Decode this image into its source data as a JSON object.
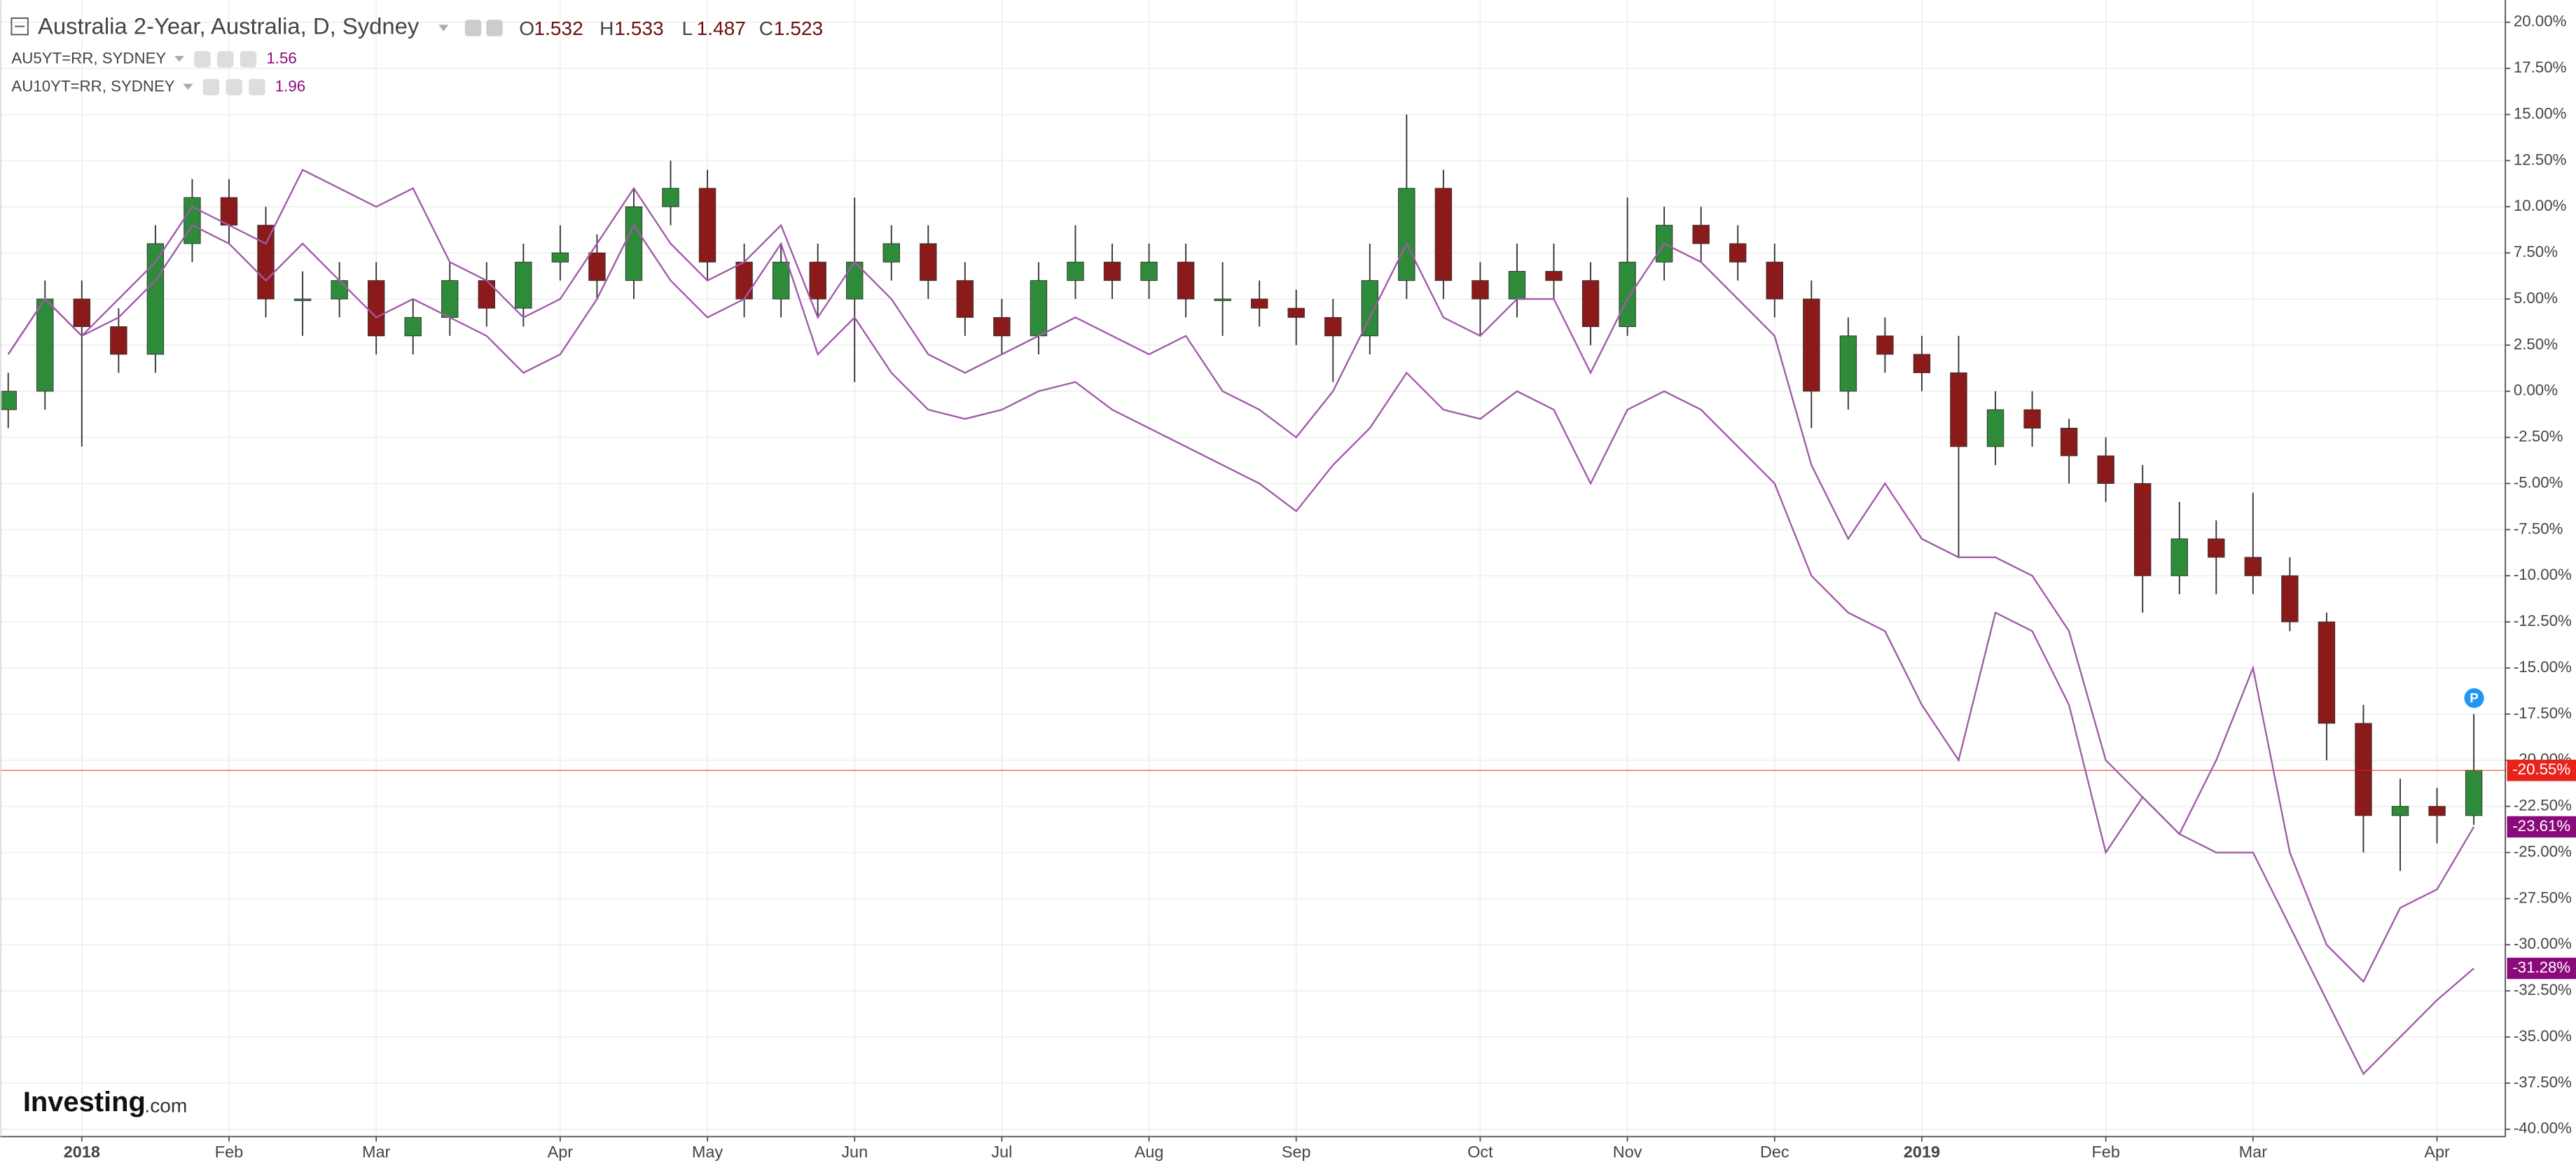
{
  "chart_data": {
    "type": "candlestick",
    "title": "Australia 2-Year, Australia, D, Sydney",
    "ohlc": [
      {
        "label": "O",
        "value": 1.532
      },
      {
        "label": "H",
        "value": 1.533
      },
      {
        "label": "L",
        "value": 1.487
      },
      {
        "label": "C",
        "value": 1.523
      }
    ],
    "categories": [
      null,
      null,
      "2018",
      null,
      null,
      null,
      "Feb",
      null,
      null,
      null,
      "Mar",
      null,
      null,
      null,
      null,
      "Apr",
      null,
      null,
      null,
      "May",
      null,
      null,
      null,
      "Jun",
      null,
      null,
      null,
      "Jul",
      null,
      null,
      null,
      "Aug",
      null,
      null,
      null,
      "Sep",
      null,
      null,
      null,
      null,
      "Oct",
      null,
      null,
      null,
      "Nov",
      null,
      null,
      null,
      "Dec",
      null,
      null,
      null,
      "2019",
      null,
      null,
      null,
      null,
      "Feb",
      null,
      null,
      null,
      "Mar",
      null,
      null,
      null,
      null,
      "Apr",
      null
    ],
    "series": [
      {
        "name": "Australia 2-Year, Australia, D, Sydney",
        "type": "candlestick",
        "up_color": "#2e8b3a",
        "down_color": "#8b1a1a",
        "label_color": "#e8231c",
        "open": [
          -1,
          0,
          5,
          3.5,
          2,
          8,
          10.5,
          9,
          5,
          5,
          6,
          3,
          4,
          6,
          4.5,
          7,
          7.5,
          6,
          10,
          11,
          7,
          5,
          7,
          5,
          7,
          8,
          6,
          4,
          3,
          6,
          7,
          6,
          7,
          5,
          5,
          4.5,
          4,
          3,
          6,
          11,
          6,
          5,
          6.5,
          6,
          3.5,
          7,
          9,
          8,
          7,
          5,
          0,
          3,
          2,
          1,
          -3,
          -1,
          -2,
          -3.5,
          -5,
          -10,
          -8,
          -9,
          -10,
          -12.5,
          -18,
          -23,
          -22.5,
          -23
        ],
        "high": [
          1,
          6,
          6,
          4.5,
          9,
          11.5,
          11.5,
          10,
          6.5,
          7,
          7,
          5,
          7,
          7,
          8,
          9,
          8.5,
          11,
          12.5,
          12,
          8,
          8,
          8,
          10.5,
          9,
          9,
          7,
          5,
          7,
          9,
          8,
          8,
          8,
          7,
          6,
          5.5,
          5,
          8,
          15,
          12,
          7,
          8,
          8,
          7,
          10.5,
          10,
          10,
          9,
          8,
          6,
          4,
          4,
          3,
          3,
          0,
          0,
          -1.5,
          -2.5,
          -4,
          -6,
          -7,
          -5.5,
          -9,
          -12,
          -17,
          -21,
          -21.5,
          -17.5
        ],
        "low": [
          -2,
          -1,
          -3,
          1,
          1,
          7,
          8,
          4,
          3,
          4,
          2,
          2,
          3,
          3.5,
          3.5,
          6,
          5,
          5,
          9,
          6,
          4,
          4,
          4,
          0.5,
          6,
          5,
          3,
          2,
          2,
          5,
          5,
          5,
          4,
          3,
          3.5,
          2.5,
          0.5,
          2,
          5,
          5,
          3,
          4,
          5,
          2.5,
          3,
          6,
          7,
          6,
          4,
          -2,
          -1,
          1,
          0,
          -9,
          -4,
          -3,
          -5,
          -6,
          -12,
          -11,
          -11,
          -11,
          -13,
          -20,
          -25,
          -26,
          -24.5,
          -23.5
        ],
        "close": [
          0,
          5,
          3.5,
          2,
          8,
          10.5,
          9,
          5,
          5,
          6,
          3,
          4,
          6,
          4.5,
          7,
          7.5,
          6,
          10,
          11,
          7,
          5,
          7,
          5,
          7,
          8,
          6,
          4,
          3,
          6,
          7,
          6,
          7,
          5,
          5,
          4.5,
          4,
          3,
          6,
          11,
          6,
          5,
          6.5,
          6,
          3.5,
          7,
          9,
          8,
          7,
          5,
          0,
          3,
          2,
          1,
          -3,
          -1,
          -2,
          -3.5,
          -5,
          -10,
          -8,
          -9,
          -10,
          -12.5,
          -18,
          -23,
          -22.5,
          -23,
          -20.55
        ],
        "value_labels": [
          null,
          null,
          null,
          null,
          null,
          null,
          null,
          null,
          null,
          null,
          null,
          null,
          null,
          null,
          null,
          null,
          null,
          null,
          null,
          null,
          null,
          null,
          null,
          null,
          null,
          null,
          null,
          null,
          null,
          null,
          null,
          null,
          null,
          null,
          null,
          null,
          null,
          null,
          null,
          null,
          null,
          null,
          null,
          null,
          null,
          null,
          null,
          null,
          null,
          null,
          null,
          null,
          null,
          null,
          null,
          null,
          null,
          null,
          null,
          null,
          null,
          null,
          null,
          null,
          null,
          null,
          null,
          "-20.55%"
        ]
      },
      {
        "name": "AU5YT=RR, SYDNEY",
        "type": "line",
        "current": 1.56,
        "color": "#a05aa8",
        "label_color": "#8b0a7a",
        "values": [
          2,
          5,
          3,
          5,
          7,
          10,
          9,
          8,
          12,
          11,
          10,
          11,
          7,
          6,
          4,
          5,
          8,
          11,
          8,
          6,
          7,
          9,
          4,
          7,
          5,
          2,
          1,
          2,
          3,
          4,
          3,
          2,
          3,
          0,
          -1,
          -2.5,
          0,
          4,
          8,
          4,
          3,
          5,
          5,
          1,
          5,
          8,
          7,
          5,
          3,
          -4,
          -8,
          -5,
          -8,
          -9,
          -9,
          -10,
          -13,
          -20,
          -22,
          -24,
          -20,
          -15,
          -25,
          -30,
          -32,
          -28,
          -27,
          -23.61
        ],
        "value_labels": [
          null,
          null,
          null,
          null,
          null,
          null,
          null,
          null,
          null,
          null,
          null,
          null,
          null,
          null,
          null,
          null,
          null,
          null,
          null,
          null,
          null,
          null,
          null,
          null,
          null,
          null,
          null,
          null,
          null,
          null,
          null,
          null,
          null,
          null,
          null,
          null,
          null,
          null,
          null,
          null,
          null,
          null,
          null,
          null,
          null,
          null,
          null,
          null,
          null,
          null,
          null,
          null,
          null,
          null,
          null,
          null,
          null,
          null,
          null,
          null,
          null,
          null,
          null,
          null,
          null,
          null,
          null,
          "-23.61%"
        ]
      },
      {
        "name": "AU10YT=RR, SYDNEY",
        "type": "line",
        "current": 1.96,
        "color": "#a05aa8",
        "label_color": "#8b0a7a",
        "values": [
          2,
          5,
          3,
          4,
          6,
          9,
          8,
          6,
          8,
          6,
          4,
          5,
          4,
          3,
          1,
          2,
          5,
          9,
          6,
          4,
          5,
          8,
          2,
          4,
          1,
          -1,
          -1.5,
          -1,
          0,
          0.5,
          -1,
          -2,
          -3,
          -4,
          -5,
          -6.5,
          -4,
          -2,
          1,
          -1,
          -1.5,
          0,
          -1,
          -5,
          -1,
          0,
          -1,
          -3,
          -5,
          -10,
          -12,
          -13,
          -17,
          -20,
          -12,
          -13,
          -17,
          -25,
          -22,
          -24,
          -25,
          -25,
          -29,
          -33,
          -37,
          -35,
          -33,
          -31.28
        ],
        "value_labels": [
          null,
          null,
          null,
          null,
          null,
          null,
          null,
          null,
          null,
          null,
          null,
          null,
          null,
          null,
          null,
          null,
          null,
          null,
          null,
          null,
          null,
          null,
          null,
          null,
          null,
          null,
          null,
          null,
          null,
          null,
          null,
          null,
          null,
          null,
          null,
          null,
          null,
          null,
          null,
          null,
          null,
          null,
          null,
          null,
          null,
          null,
          null,
          null,
          null,
          null,
          null,
          null,
          null,
          null,
          null,
          null,
          null,
          null,
          null,
          null,
          null,
          null,
          null,
          null,
          null,
          null,
          null,
          "-31.28%"
        ]
      }
    ],
    "ylim": [
      -40.4,
      21.2
    ],
    "yticks": [
      {
        "value": 20,
        "label": "20.00%"
      },
      {
        "value": 17.5,
        "label": "17.50%"
      },
      {
        "value": 15,
        "label": "15.00%"
      },
      {
        "value": 12.5,
        "label": "12.50%"
      },
      {
        "value": 10,
        "label": "10.00%"
      },
      {
        "value": 7.5,
        "label": "7.50%"
      },
      {
        "value": 5,
        "label": "5.00%"
      },
      {
        "value": 2.5,
        "label": "2.50%"
      },
      {
        "value": 0,
        "label": "0.00%"
      },
      {
        "value": -2.5,
        "label": "-2.50%"
      },
      {
        "value": -5,
        "label": "-5.00%"
      },
      {
        "value": -7.5,
        "label": "-7.50%"
      },
      {
        "value": -10,
        "label": "-10.00%"
      },
      {
        "value": -12.5,
        "label": "-12.50%"
      },
      {
        "value": -15,
        "label": "-15.00%"
      },
      {
        "value": -17.5,
        "label": "-17.50%"
      },
      {
        "value": -20,
        "label": "-20.00%"
      },
      {
        "value": -22.5,
        "label": "-22.50%"
      },
      {
        "value": -25,
        "label": "-25.00%"
      },
      {
        "value": -27.5,
        "label": "-27.50%"
      },
      {
        "value": -30,
        "label": "-30.00%"
      },
      {
        "value": -32.5,
        "label": "-32.50%"
      },
      {
        "value": -35,
        "label": "-35.00%"
      },
      {
        "value": -37.5,
        "label": "-37.50%"
      },
      {
        "value": -40,
        "label": "-40.00%"
      }
    ],
    "grid": true,
    "marker": "P",
    "watermark": [
      "Investing",
      ".com"
    ]
  }
}
